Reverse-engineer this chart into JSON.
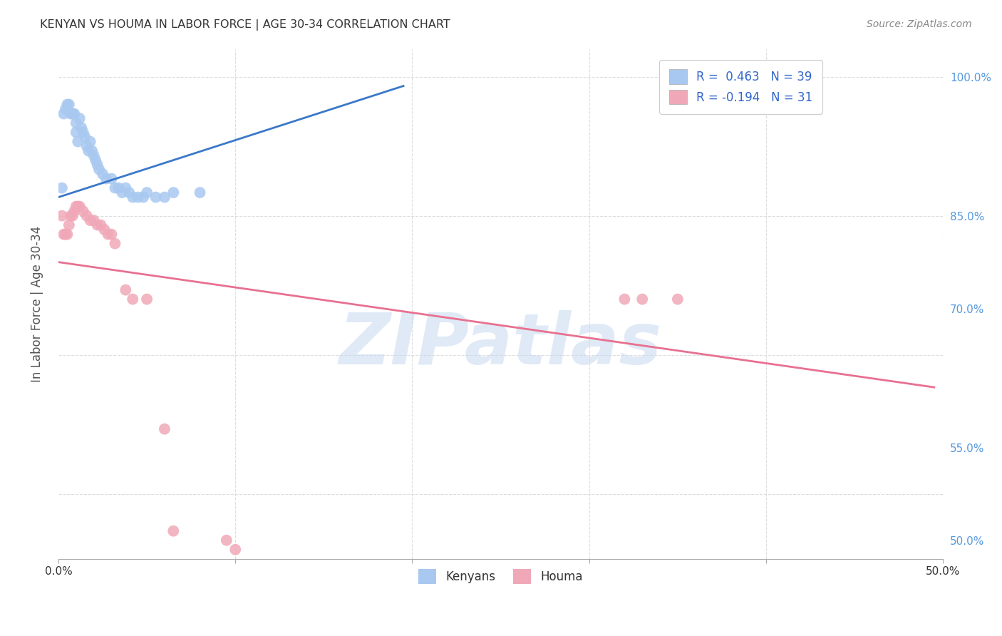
{
  "title": "KENYAN VS HOUMA IN LABOR FORCE | AGE 30-34 CORRELATION CHART",
  "source": "Source: ZipAtlas.com",
  "ylabel": "In Labor Force | Age 30-34",
  "xlim": [
    0.0,
    0.5
  ],
  "ylim": [
    0.48,
    1.03
  ],
  "watermark": "ZIPatlas",
  "kenyan_x": [
    0.002,
    0.003,
    0.004,
    0.005,
    0.006,
    0.007,
    0.008,
    0.009,
    0.01,
    0.01,
    0.011,
    0.012,
    0.013,
    0.014,
    0.015,
    0.016,
    0.017,
    0.018,
    0.019,
    0.02,
    0.021,
    0.022,
    0.023,
    0.025,
    0.027,
    0.03,
    0.032,
    0.034,
    0.036,
    0.038,
    0.04,
    0.042,
    0.045,
    0.048,
    0.05,
    0.055,
    0.06,
    0.065,
    0.08
  ],
  "kenyan_y": [
    0.88,
    0.96,
    0.965,
    0.97,
    0.97,
    0.96,
    0.96,
    0.96,
    0.94,
    0.95,
    0.93,
    0.955,
    0.945,
    0.94,
    0.935,
    0.925,
    0.92,
    0.93,
    0.92,
    0.915,
    0.91,
    0.905,
    0.9,
    0.895,
    0.89,
    0.89,
    0.88,
    0.88,
    0.875,
    0.88,
    0.875,
    0.87,
    0.87,
    0.87,
    0.875,
    0.87,
    0.87,
    0.875,
    0.875
  ],
  "houma_x": [
    0.002,
    0.003,
    0.004,
    0.005,
    0.006,
    0.007,
    0.008,
    0.009,
    0.01,
    0.011,
    0.012,
    0.014,
    0.016,
    0.018,
    0.02,
    0.022,
    0.024,
    0.026,
    0.028,
    0.03,
    0.032,
    0.038,
    0.042,
    0.05,
    0.06,
    0.065,
    0.32,
    0.33,
    0.35,
    0.095,
    0.1
  ],
  "houma_y": [
    0.85,
    0.83,
    0.83,
    0.83,
    0.84,
    0.85,
    0.85,
    0.855,
    0.86,
    0.86,
    0.86,
    0.855,
    0.85,
    0.845,
    0.845,
    0.84,
    0.84,
    0.835,
    0.83,
    0.83,
    0.82,
    0.77,
    0.76,
    0.76,
    0.62,
    0.51,
    0.76,
    0.76,
    0.76,
    0.5,
    0.49
  ],
  "kenyan_line_x": [
    0.0,
    0.195
  ],
  "kenyan_line_y": [
    0.87,
    0.99
  ],
  "houma_line_x": [
    0.0,
    0.495
  ],
  "houma_line_y": [
    0.8,
    0.665
  ],
  "kenyan_line_color": "#3a78c9",
  "houma_line_color": "#e87090",
  "kenyan_dot_color": "#a8c8f0",
  "houma_dot_color": "#f0a8b8",
  "background_color": "#ffffff",
  "grid_color": "#dddddd",
  "title_color": "#333333",
  "axis_label_color": "#555555",
  "right_tick_color": "#5599dd",
  "watermark_color": "#c8d8f0",
  "grid_yticks": [
    0.55,
    0.7,
    0.85,
    1.0
  ],
  "grid_xticks": [
    0.1,
    0.2,
    0.3,
    0.4,
    0.5
  ],
  "ytick_labels": {
    "0.50": "50.0%",
    "0.55": "55.0%",
    "0.70": "70.0%",
    "0.85": "85.0%",
    "1.00": "100.0%"
  },
  "legend_r1": "R =  0.463   N = 39",
  "legend_r2": "R = -0.194   N = 31"
}
